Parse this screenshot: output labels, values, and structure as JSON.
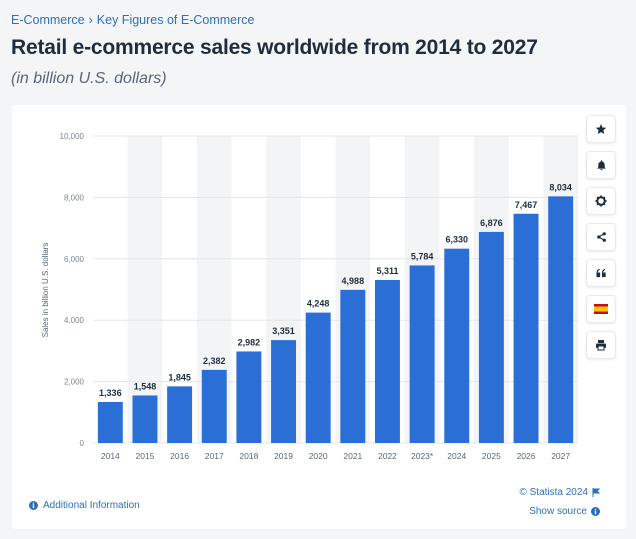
{
  "breadcrumb": {
    "items": [
      "E-Commerce",
      "Key Figures of E-Commerce"
    ],
    "separator": "›"
  },
  "header": {
    "title": "Retail e-commerce sales worldwide from 2014 to 2027",
    "subtitle": "(in billion U.S. dollars)"
  },
  "toolbar": {
    "icons": [
      "star-icon",
      "bell-icon",
      "gear-icon",
      "share-icon",
      "quote-icon",
      "flag-icon",
      "print-icon"
    ]
  },
  "footer": {
    "additional_info": "Additional Information",
    "copyright": "© Statista 2024",
    "show_source": "Show source"
  },
  "colors": {
    "bar": "#2b6fd6",
    "link": "#2d6fb7",
    "band": "#f3f4f6"
  },
  "chart_data": {
    "type": "bar",
    "categories": [
      "2014",
      "2015",
      "2016",
      "2017",
      "2018",
      "2019",
      "2020",
      "2021",
      "2022",
      "2023*",
      "2024",
      "2025",
      "2026",
      "2027"
    ],
    "values": [
      1336,
      1548,
      1845,
      2382,
      2982,
      3351,
      4248,
      4988,
      5311,
      5784,
      6330,
      6876,
      7467,
      8034
    ],
    "value_labels": [
      "1,336",
      "1,548",
      "1,845",
      "2,382",
      "2,982",
      "3,351",
      "4,248",
      "4,988",
      "5,311",
      "5,784",
      "6,330",
      "6,876",
      "7,467",
      "8,034"
    ],
    "ylabel": "Sales in billion U.S. dollars",
    "ylim": [
      0,
      10000
    ],
    "yticks": [
      0,
      2000,
      4000,
      6000,
      8000,
      10000
    ],
    "ytick_labels": [
      "0",
      "2,000",
      "4,000",
      "6,000",
      "8,000",
      "10,000"
    ],
    "grid": true
  }
}
